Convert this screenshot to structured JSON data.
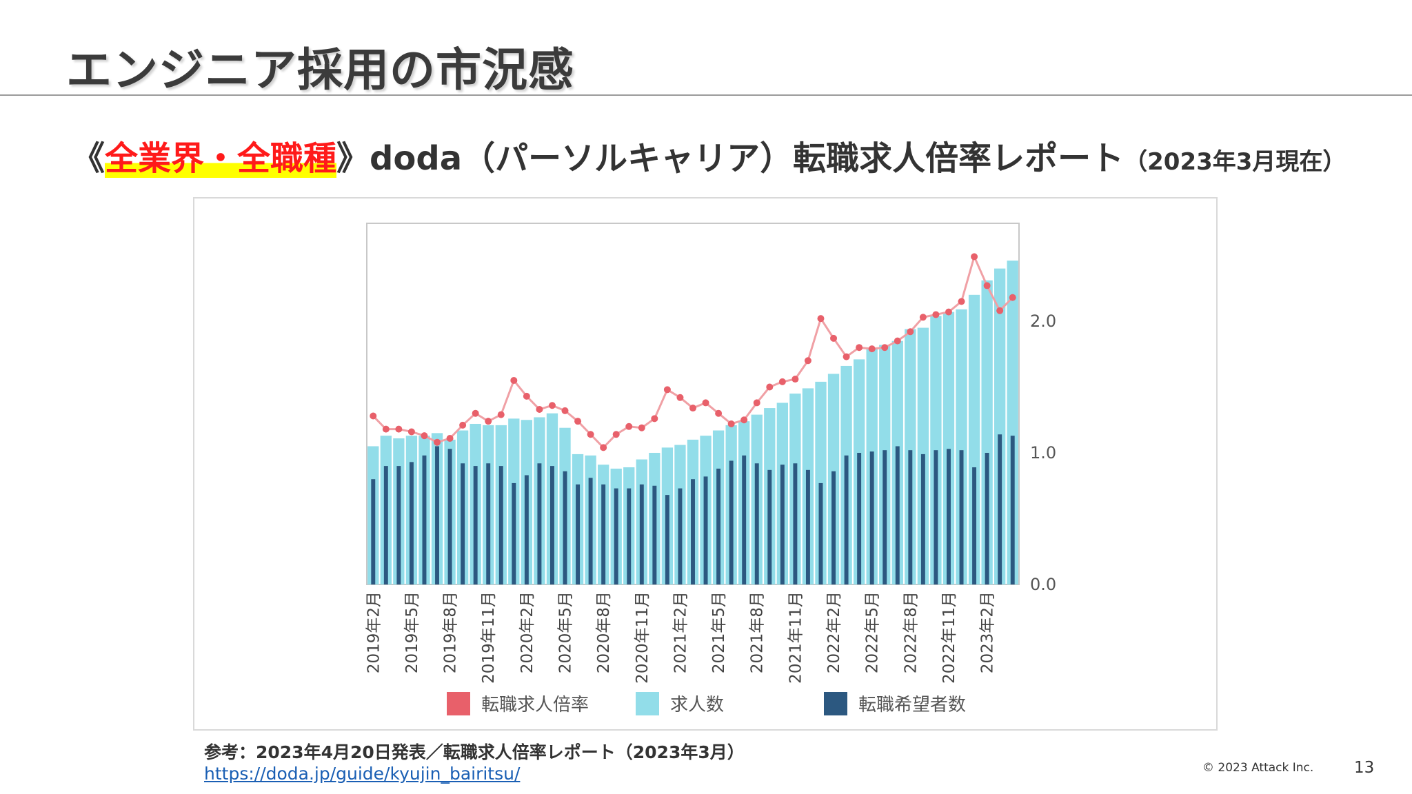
{
  "slide": {
    "title": "エンジニア採用の市況感",
    "subtitle_prefix": "《",
    "subtitle_highlight": "全業界・全職種",
    "subtitle_main": "》doda（パーソルキャリア）転職求人倍率レポート",
    "subtitle_date": "（2023年3月現在）",
    "reference": "参考：2023年4月20日発表／転職求人倍率レポート（2023年3月）",
    "reference_link": "https://doda.jp/guide/kyujin_bairitsu/",
    "copyright": "© 2023 Attack Inc.",
    "page_number": "13"
  },
  "chart_data": {
    "type": "bar",
    "title": "",
    "xlabel": "",
    "ylabel": "",
    "ylim": [
      0,
      2.75
    ],
    "y_ticks": [
      "0.0",
      "1.0",
      "2.0"
    ],
    "x_ticks": [
      "2019年2月",
      "2019年5月",
      "2019年8月",
      "2019年11月",
      "2020年2月",
      "2020年5月",
      "2020年8月",
      "2020年11月",
      "2021年2月",
      "2021年5月",
      "2021年8月",
      "2021年11月",
      "2022年2月",
      "2022年5月",
      "2022年8月",
      "2022年11月",
      "2023年2月"
    ],
    "legend_position": "bottom",
    "grid": false,
    "colors": {
      "ratio": "#e8606a",
      "jobs": "#92dde9",
      "applicants": "#2c5880"
    },
    "series": [
      {
        "name": "転職求人倍率",
        "type": "line",
        "values": [
          1.28,
          1.18,
          1.18,
          1.16,
          1.13,
          1.08,
          1.11,
          1.21,
          1.3,
          1.24,
          1.29,
          1.55,
          1.43,
          1.33,
          1.36,
          1.32,
          1.24,
          1.14,
          1.04,
          1.14,
          1.2,
          1.19,
          1.26,
          1.48,
          1.42,
          1.34,
          1.38,
          1.3,
          1.22,
          1.25,
          1.38,
          1.5,
          1.54,
          1.56,
          1.7,
          2.02,
          1.87,
          1.73,
          1.8,
          1.79,
          1.8,
          1.85,
          1.92,
          2.03,
          2.05,
          2.07,
          2.15,
          2.49,
          2.27,
          2.08,
          2.18
        ]
      },
      {
        "name": "求人数",
        "type": "bar",
        "values": [
          1.05,
          1.13,
          1.11,
          1.13,
          1.13,
          1.15,
          1.1,
          1.17,
          1.22,
          1.21,
          1.21,
          1.26,
          1.25,
          1.27,
          1.3,
          1.19,
          0.99,
          0.98,
          0.91,
          0.88,
          0.89,
          0.95,
          1.0,
          1.04,
          1.06,
          1.1,
          1.13,
          1.17,
          1.21,
          1.24,
          1.29,
          1.34,
          1.38,
          1.45,
          1.49,
          1.54,
          1.6,
          1.66,
          1.71,
          1.79,
          1.82,
          1.85,
          1.94,
          1.95,
          2.04,
          2.07,
          2.09,
          2.2,
          2.31,
          2.4,
          2.46
        ]
      },
      {
        "name": "転職希望者数",
        "type": "bar",
        "values": [
          0.8,
          0.9,
          0.9,
          0.93,
          0.98,
          1.05,
          1.03,
          0.92,
          0.9,
          0.92,
          0.9,
          0.77,
          0.83,
          0.92,
          0.9,
          0.86,
          0.76,
          0.81,
          0.76,
          0.73,
          0.73,
          0.76,
          0.75,
          0.68,
          0.73,
          0.8,
          0.82,
          0.88,
          0.94,
          0.98,
          0.92,
          0.87,
          0.91,
          0.92,
          0.87,
          0.77,
          0.86,
          0.98,
          1.0,
          1.01,
          1.02,
          1.05,
          1.02,
          0.99,
          1.02,
          1.03,
          1.02,
          0.89,
          1.0,
          1.14,
          1.13
        ]
      }
    ]
  }
}
